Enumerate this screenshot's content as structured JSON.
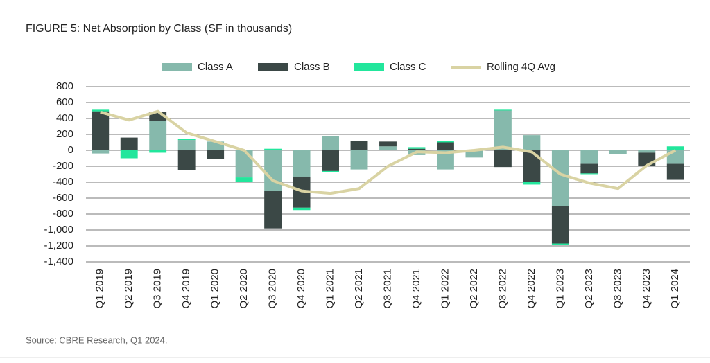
{
  "chart_data": {
    "type": "stacked-bar-line",
    "title": "FIGURE 5: Net Absorption by Class (SF in thousands)",
    "source": "Source: CBRE Research, Q1 2024.",
    "categories": [
      "Q1 2019",
      "Q2 2019",
      "Q3 2019",
      "Q4 2019",
      "Q1 2020",
      "Q2 2020",
      "Q3 2020",
      "Q4 2020",
      "Q1 2021",
      "Q2 2021",
      "Q3 2021",
      "Q4 2021",
      "Q1 2022",
      "Q2 2022",
      "Q3 2022",
      "Q4 2022",
      "Q1 2023",
      "Q2 2023",
      "Q3 2023",
      "Q4 2023",
      "Q1 2024"
    ],
    "series": [
      {
        "name": "Class A",
        "color": "#86b9ac",
        "kind": "bar",
        "values": [
          -40,
          0,
          370,
          130,
          110,
          -330,
          -510,
          -330,
          180,
          -240,
          50,
          -60,
          -240,
          -90,
          500,
          190,
          -700,
          -170,
          -50,
          -30,
          -170
        ]
      },
      {
        "name": "Class B",
        "color": "#3b4846",
        "kind": "bar",
        "values": [
          490,
          160,
          110,
          -250,
          -110,
          -10,
          -470,
          -390,
          -260,
          120,
          60,
          20,
          100,
          0,
          -210,
          -400,
          -470,
          -120,
          0,
          -170,
          -200
        ]
      },
      {
        "name": "Class C",
        "color": "#22e69c",
        "kind": "bar",
        "values": [
          20,
          -100,
          -30,
          10,
          0,
          -60,
          20,
          -30,
          -10,
          0,
          0,
          20,
          20,
          0,
          10,
          -30,
          -20,
          -10,
          0,
          0,
          50
        ]
      },
      {
        "name": "Rolling 4Q Avg",
        "color": "#d9d3a3",
        "kind": "line",
        "values": [
          480,
          380,
          490,
          220,
          110,
          0,
          -380,
          -510,
          -540,
          -480,
          -200,
          -20,
          -30,
          0,
          40,
          -20,
          -300,
          -410,
          -480,
          -190,
          0
        ]
      }
    ],
    "ylim": [
      -1400,
      800
    ],
    "yticks": [
      {
        "value": -1400,
        "label": "-1,400"
      },
      {
        "value": -1200,
        "label": "-1,200"
      },
      {
        "value": -1000,
        "label": "-1,000"
      },
      -800,
      -600,
      -400,
      -200,
      0,
      200,
      400,
      600,
      800
    ],
    "grid": true
  }
}
